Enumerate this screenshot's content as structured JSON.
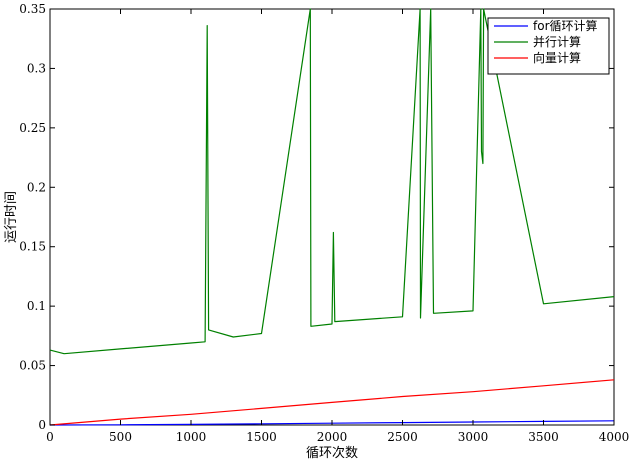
{
  "chart_data": {
    "type": "line",
    "xlabel": "循环次数",
    "ylabel": "运行时间",
    "xlim": [
      0,
      4000
    ],
    "ylim": [
      0,
      0.35
    ],
    "xticks": [
      0,
      500,
      1000,
      1500,
      2000,
      2500,
      3000,
      3500,
      4000
    ],
    "yticks": [
      0,
      0.05,
      0.1,
      0.15,
      0.2,
      0.25,
      0.3,
      0.35
    ],
    "xtick_labels": [
      "0",
      "500",
      "1000",
      "1500",
      "2000",
      "2500",
      "3000",
      "3500",
      "4000"
    ],
    "ytick_labels": [
      "0",
      "0.05",
      "0.1",
      "0.15",
      "0.2",
      "0.25",
      "0.3",
      "0.35"
    ],
    "grid": false,
    "legend_position": "top-right",
    "series": [
      {
        "name": "for循环计算",
        "color": "#0000ff",
        "x": [
          0,
          500,
          1000,
          1500,
          2000,
          2500,
          3000,
          3500,
          4000
        ],
        "y": [
          0.0,
          0.0002,
          0.0005,
          0.001,
          0.0015,
          0.002,
          0.0025,
          0.003,
          0.0035
        ]
      },
      {
        "name": "并行计算",
        "color": "#008000",
        "x": [
          0,
          100,
          500,
          1000,
          1100,
          1115,
          1125,
          1300,
          1500,
          1846,
          1850,
          2000,
          2010,
          2020,
          2500,
          2625,
          2628,
          2700,
          2720,
          3000,
          3055,
          3060,
          3070,
          3075,
          3500,
          4000
        ],
        "y": [
          0.063,
          0.06,
          0.064,
          0.069,
          0.07,
          0.336,
          0.08,
          0.074,
          0.077,
          0.35,
          0.083,
          0.085,
          0.162,
          0.087,
          0.091,
          0.35,
          0.09,
          0.35,
          0.094,
          0.096,
          0.35,
          0.23,
          0.22,
          0.35,
          0.102,
          0.108
        ]
      },
      {
        "name": "向量计算",
        "color": "#ff0000",
        "x": [
          0,
          500,
          1000,
          1500,
          2000,
          2500,
          3000,
          3500,
          4000
        ],
        "y": [
          0.0,
          0.005,
          0.009,
          0.014,
          0.019,
          0.024,
          0.028,
          0.033,
          0.038
        ]
      }
    ]
  }
}
